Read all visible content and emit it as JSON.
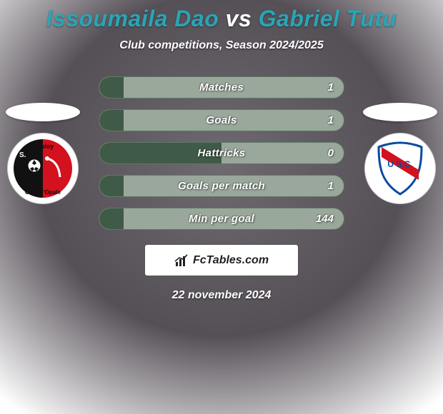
{
  "title_parts": {
    "player1": "Issoumaila Dao",
    "vs": "vs",
    "player2": "Gabriel Tutu"
  },
  "subtitle": "Club competitions, Season 2024/2025",
  "colors": {
    "title_player": "#2aa5b5",
    "title_vs": "#ffffff",
    "bg_top": "#554f56",
    "bg_mid": "#6f6970",
    "bg_bottom": "#ffffff",
    "bar_left_fill": "#3f5a47",
    "bar_right_fill": "#9aa79b",
    "bar_border": "#5d7a63"
  },
  "stats": [
    {
      "label": "Matches",
      "left_pct": 10,
      "right_val": "1"
    },
    {
      "label": "Goals",
      "left_pct": 10,
      "right_val": "1"
    },
    {
      "label": "Hattricks",
      "left_pct": 50,
      "right_val": "0"
    },
    {
      "label": "Goals per match",
      "left_pct": 10,
      "right_val": "1"
    },
    {
      "label": "Min per goal",
      "left_pct": 10,
      "right_val": "144"
    }
  ],
  "brand": {
    "icon_name": "chart-icon",
    "text": "FcTables.com"
  },
  "date": "22 november 2024",
  "crest_left": {
    "bg": "#ffffff",
    "stripe_left": "#111111",
    "stripe_right": "#d4111e",
    "text_top": "Bouloy",
    "text_bottom": "Côte d'Opale",
    "text_s": "S.",
    "ball_color": "#ffffff"
  },
  "crest_right": {
    "shield_fill": "#ffffff",
    "shield_stroke": "#0b4aa0",
    "band_color": "#d4111e",
    "text": "U S.C."
  }
}
